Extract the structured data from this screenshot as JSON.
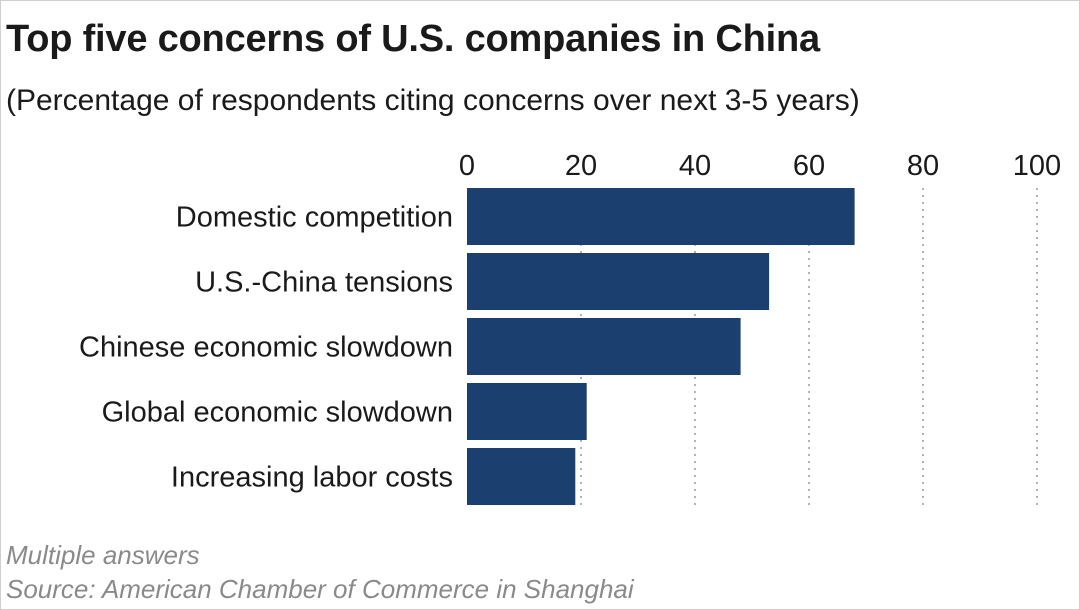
{
  "chart_data": {
    "type": "bar",
    "orientation": "horizontal",
    "title": "Top five concerns of U.S. companies in China",
    "subtitle": "(Percentage of respondents citing concerns over next 3-5 years)",
    "categories": [
      "Domestic competition",
      "U.S.-China tensions",
      "Chinese economic slowdown",
      "Global economic slowdown",
      "Increasing labor costs"
    ],
    "values": [
      68,
      53,
      48,
      21,
      19
    ],
    "xlim": [
      0,
      100
    ],
    "xticks": [
      0,
      20,
      40,
      60,
      80,
      100
    ],
    "tick_labels": [
      "0",
      "20",
      "40",
      "60",
      "80",
      "100"
    ],
    "axis_position": "top",
    "grid": "vertical dotted",
    "legend": "none",
    "bar_color": "#1b3f6e",
    "grid_color": "#9a9a9a"
  },
  "footer": {
    "note": "Multiple answers",
    "source": "Source: American Chamber of Commerce in Shanghai"
  }
}
